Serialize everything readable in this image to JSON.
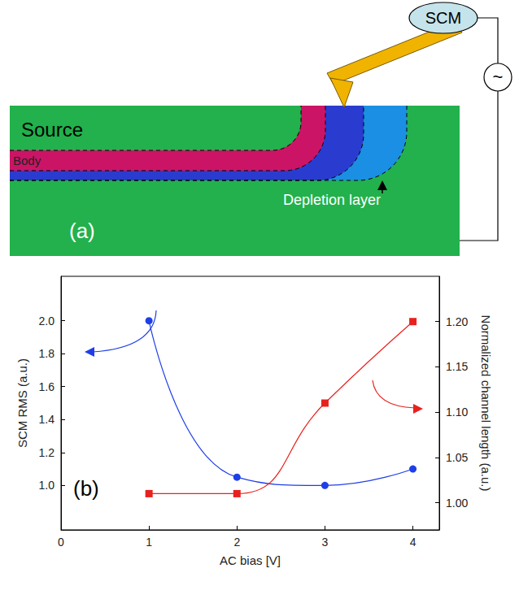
{
  "diagram": {
    "panel_label": "(a)",
    "labels": {
      "source": "Source",
      "body": "Body",
      "depletion": "Depletion layer",
      "instrument": "SCM",
      "ac_source": "~"
    }
  },
  "chart_data": {
    "type": "line",
    "panel_label": "(b)",
    "x_label": "AC bias [V]",
    "y_label": "SCM RMS (a.u.)",
    "y2_label": "Normalized channel length (a.u.)",
    "x": [
      1,
      2,
      3,
      4
    ],
    "series": [
      {
        "color": "#1f3fe6",
        "marker": "circle",
        "values": [
          2.0,
          1.05,
          1.0,
          1.1
        ]
      },
      {
        "color": "#e8211e",
        "marker": "square",
        "axis": "y2",
        "values": [
          1.01,
          1.01,
          1.11,
          1.2
        ]
      }
    ],
    "xlim": [
      0,
      4.3
    ],
    "xticks": [
      0,
      1,
      2,
      3,
      4
    ],
    "ylim": [
      0.73,
      2.27
    ],
    "yticks": [
      {
        "value": 1,
        "label": "1.0"
      },
      1.2,
      1.4,
      1.6,
      1.8,
      {
        "value": 2,
        "label": "2.0"
      }
    ],
    "y2lim": [
      0.97,
      1.25
    ],
    "y2ticks": [
      {
        "value": 1,
        "label": "1.00"
      },
      1.05,
      {
        "value": 1.1,
        "label": "1.10"
      },
      1.15,
      {
        "value": 1.2,
        "label": "1.20"
      }
    ],
    "grid": false
  }
}
